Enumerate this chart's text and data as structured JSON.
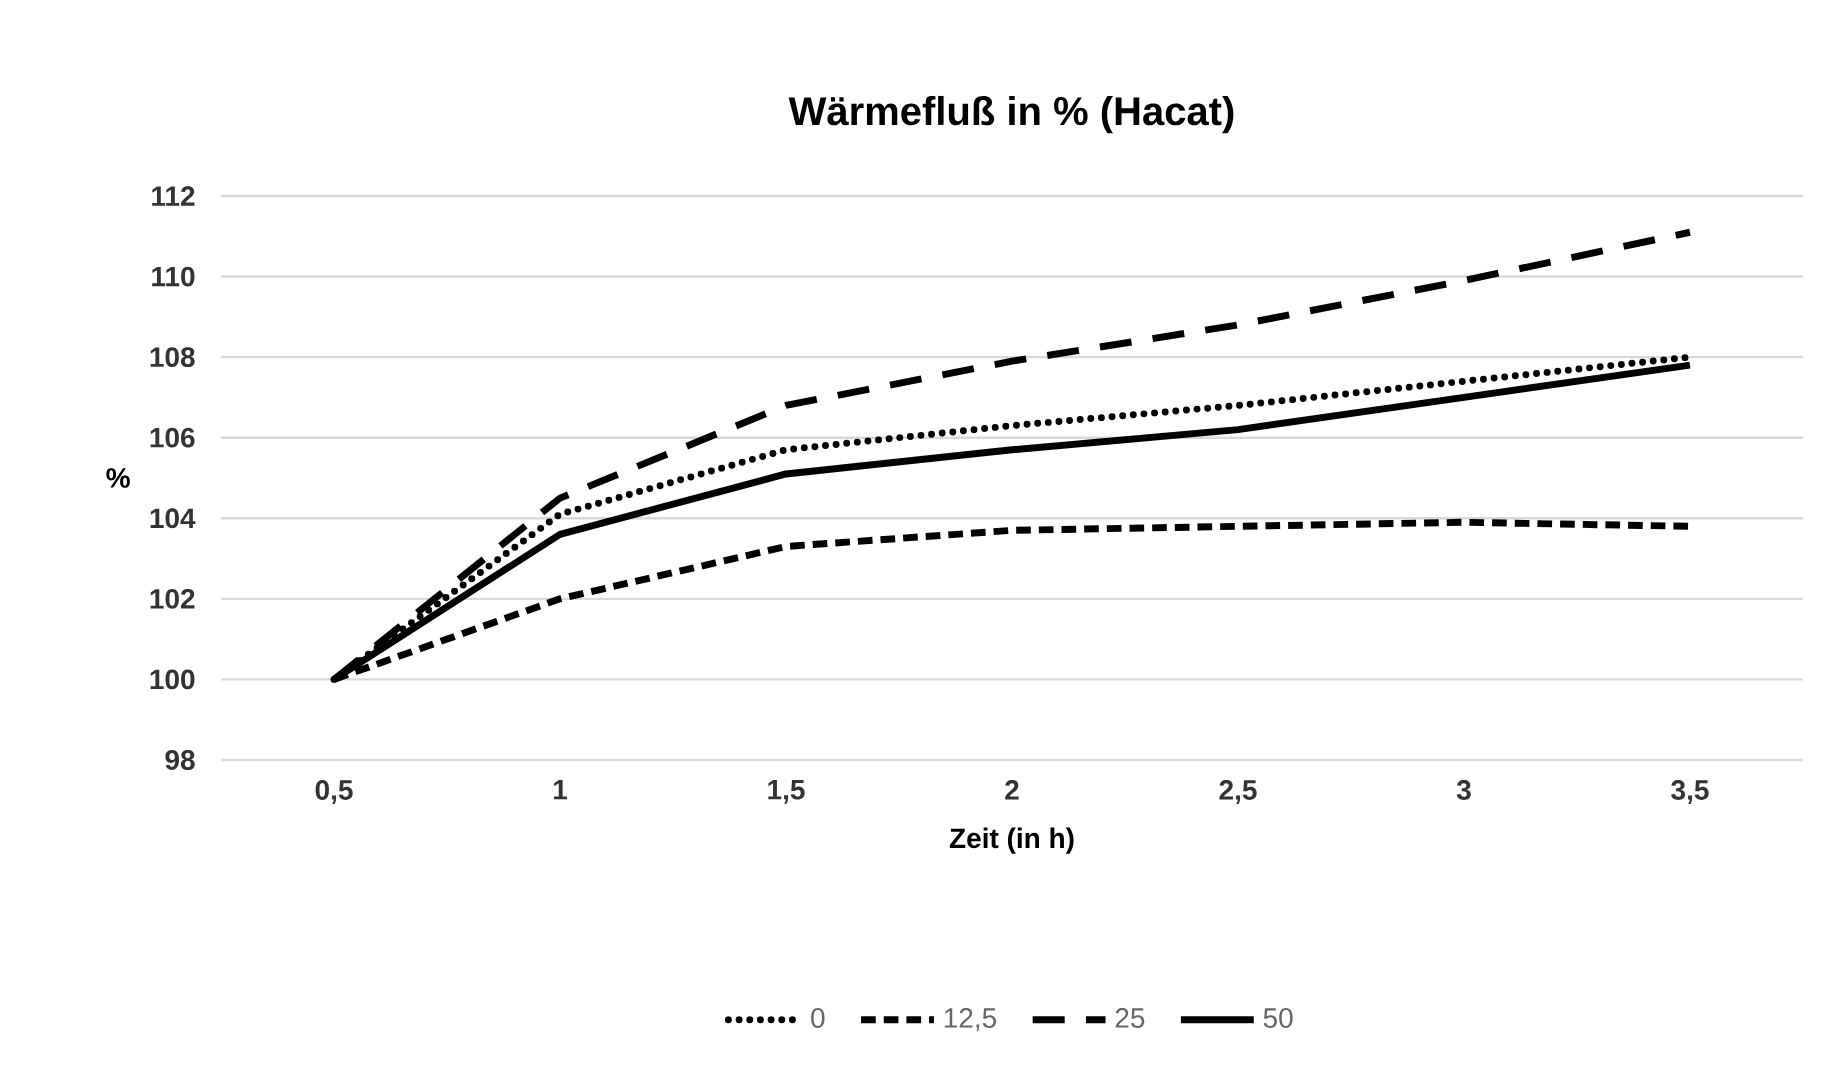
{
  "chart_data": {
    "type": "line",
    "title": "Wärmefluß in % (Hacat)",
    "xlabel": "Zeit (in h)",
    "ylabel": "%",
    "categories": [
      "0,5",
      "1",
      "1,5",
      "2",
      "2,5",
      "3",
      "3,5"
    ],
    "series": [
      {
        "name": "0",
        "color": "#000000",
        "line_style": "dotted",
        "values": [
          100,
          104.1,
          105.7,
          106.3,
          106.8,
          107.4,
          108.0
        ]
      },
      {
        "name": "12,5",
        "color": "#000000",
        "line_style": "dashed",
        "values": [
          100,
          102.0,
          103.3,
          103.7,
          103.8,
          103.9,
          103.8
        ]
      },
      {
        "name": "25",
        "color": "#000000",
        "line_style": "long dashed",
        "values": [
          100,
          104.5,
          106.8,
          107.9,
          108.8,
          109.9,
          111.1
        ]
      },
      {
        "name": "50",
        "color": "#000000",
        "line_style": "solid",
        "values": [
          100,
          103.6,
          105.1,
          105.7,
          106.2,
          107.0,
          107.8
        ]
      }
    ],
    "ylim": [
      98,
      112
    ],
    "yticks": [
      98,
      100,
      102,
      104,
      106,
      108,
      110,
      112
    ],
    "grid": "y",
    "legend": "bottom",
    "marker": "none"
  }
}
